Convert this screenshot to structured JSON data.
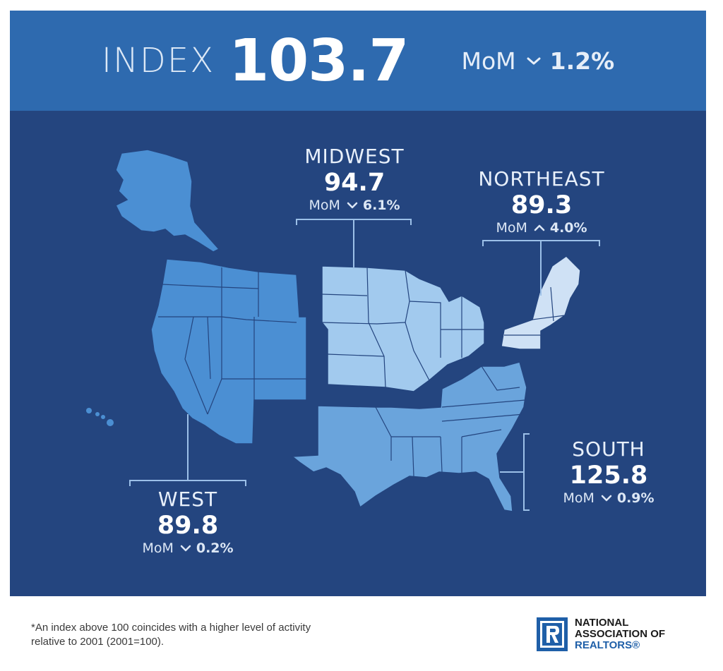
{
  "header": {
    "index_label": "INDEX",
    "index_value": "103.7",
    "mom_label": "MoM",
    "mom_direction": "down",
    "mom_change": "1.2%"
  },
  "regions": {
    "midwest": {
      "name": "MIDWEST",
      "value": "94.7",
      "mom_label": "MoM",
      "direction": "down",
      "change": "6.1%"
    },
    "northeast": {
      "name": "NORTHEAST",
      "value": "89.3",
      "mom_label": "MoM",
      "direction": "up",
      "change": "4.0%"
    },
    "south": {
      "name": "SOUTH",
      "value": "125.8",
      "mom_label": "MoM",
      "direction": "down",
      "change": "0.9%"
    },
    "west": {
      "name": "WEST",
      "value": "89.8",
      "mom_label": "MoM",
      "direction": "down",
      "change": "0.2%"
    }
  },
  "footnote": "*An index above 100 coincides with a higher level of activity relative to 2001 (2001=100).",
  "logo": {
    "line1": "NATIONAL",
    "line2": "ASSOCIATION OF",
    "line3": "REALTORS®"
  },
  "colors": {
    "banner": "#2e6aaf",
    "panel": "#24457f",
    "west": "#4b8fd3",
    "south": "#6aa4dc",
    "midwest": "#a2caee",
    "northeast": "#cfe1f5",
    "brand": "#1f5fa8"
  }
}
